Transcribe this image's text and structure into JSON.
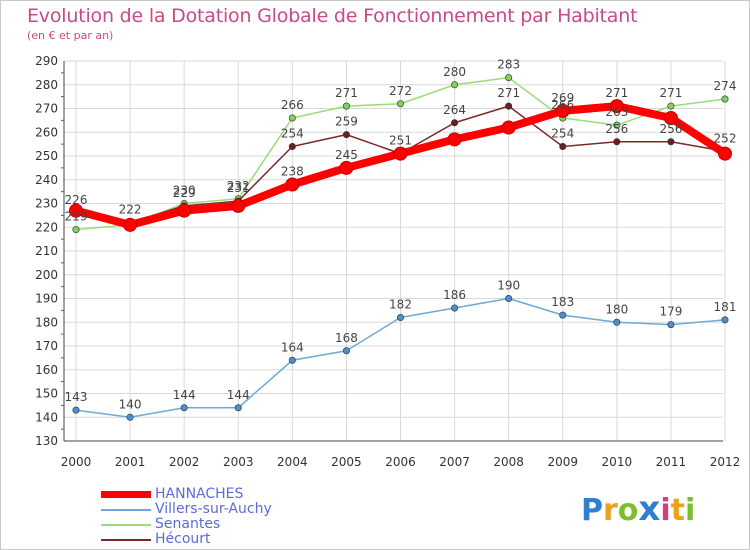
{
  "header": {
    "title": "Evolution de la Dotation Globale de Fonctionnement par Habitant",
    "subtitle": "(en € et par an)"
  },
  "logo": {
    "text": "ProXiti",
    "letters": [
      "P",
      "r",
      "o",
      "x",
      "i",
      "t",
      "i"
    ],
    "colors": [
      "#2f7fd1",
      "#e8a21b",
      "#7bbf2e",
      "#2f7fd1",
      "#d93c7a",
      "#e8a21b",
      "#7bbf2e"
    ]
  },
  "chart_data": {
    "type": "line",
    "title": "Evolution de la Dotation Globale de Fonctionnement par Habitant",
    "subtitle": "(en € et par an)",
    "x": [
      "2000",
      "2001",
      "2002",
      "2003",
      "2004",
      "2005",
      "2006",
      "2007",
      "2008",
      "2009",
      "2010",
      "2011",
      "2012"
    ],
    "ylim": [
      130,
      290
    ],
    "yticks": [
      130,
      140,
      150,
      160,
      170,
      180,
      190,
      200,
      210,
      220,
      230,
      240,
      250,
      260,
      270,
      280,
      290
    ],
    "grid": true,
    "legend": "bottom-left",
    "series": [
      {
        "name": "HANNACHES",
        "color": "#ff0000",
        "values": [
          227,
          221,
          227,
          229,
          238,
          245,
          251,
          257,
          262,
          269,
          271,
          266,
          251
        ],
        "labels": [
          "",
          "",
          "",
          "",
          "238",
          "245",
          "",
          "",
          "",
          "269",
          "271",
          "",
          ""
        ]
      },
      {
        "name": "Villers-sur-Auchy",
        "color": "#6fa8d6",
        "values": [
          143,
          140,
          144,
          144,
          164,
          168,
          182,
          186,
          190,
          183,
          180,
          179,
          181
        ],
        "labels": [
          "143",
          "140",
          "144",
          "144",
          "164",
          "168",
          "182",
          "186",
          "190",
          "183",
          "180",
          "179",
          "181"
        ]
      },
      {
        "name": "Senantes",
        "color": "#99dd77",
        "values": [
          219,
          221,
          230,
          232,
          266,
          271,
          272,
          280,
          283,
          266,
          263,
          271,
          274
        ],
        "labels": [
          "219",
          "",
          "230",
          "232",
          "266",
          "271",
          "272",
          "280",
          "283",
          "266",
          "263",
          "271",
          "274"
        ]
      },
      {
        "name": "Hécourt",
        "color": "#7a2a2a",
        "values": [
          226,
          222,
          229,
          231,
          254,
          259,
          251,
          264,
          271,
          254,
          256,
          256,
          252
        ],
        "labels": [
          "226",
          "222",
          "229",
          "231",
          "254",
          "259",
          "251",
          "264",
          "271",
          "254",
          "256",
          "256",
          "252"
        ]
      }
    ]
  }
}
